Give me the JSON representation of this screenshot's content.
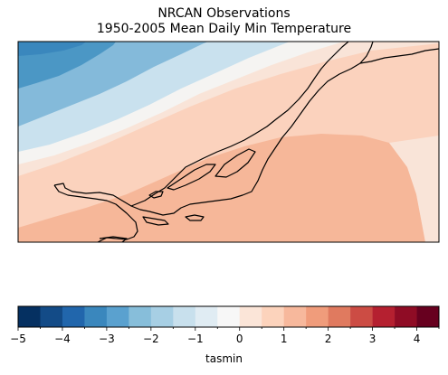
{
  "title": {
    "line1": "NRCAN Observations",
    "line2": "1950-2005 Mean Daily Min Temperature"
  },
  "colorbar": {
    "label": "tasmin",
    "min": -5,
    "max": 4.5,
    "step": 0.5,
    "ticks": [
      -5,
      -4,
      -3,
      -2,
      -1,
      0,
      1,
      2,
      3,
      4
    ],
    "tick_labels": [
      "−5",
      "−4",
      "−3",
      "−2",
      "−1",
      "0",
      "1",
      "2",
      "3",
      "4"
    ],
    "colors": [
      "#053061",
      "#134b87",
      "#2166ac",
      "#3a87bd",
      "#5aa1cf",
      "#87beda",
      "#a7cfe4",
      "#c8e0ed",
      "#e0ecf3",
      "#f7f7f7",
      "#fbe5d8",
      "#fcd3bc",
      "#f7b89c",
      "#f09c7b",
      "#e07a5f",
      "#cc4c44",
      "#b52030",
      "#8f0c25",
      "#67001f"
    ]
  },
  "map": {
    "variable": "tasmin",
    "gradient_colors": {
      "blue_dark": "#4b97c5",
      "blue_mid": "#84bada",
      "blue_light": "#c9e1ee",
      "white": "#f5f4f2",
      "peach_pale": "#f9e4d8",
      "peach": "#fbd2bd",
      "salmon": "#f6b799",
      "salmon_dark": "#f09c7b"
    },
    "coastline_color": "#000000"
  }
}
